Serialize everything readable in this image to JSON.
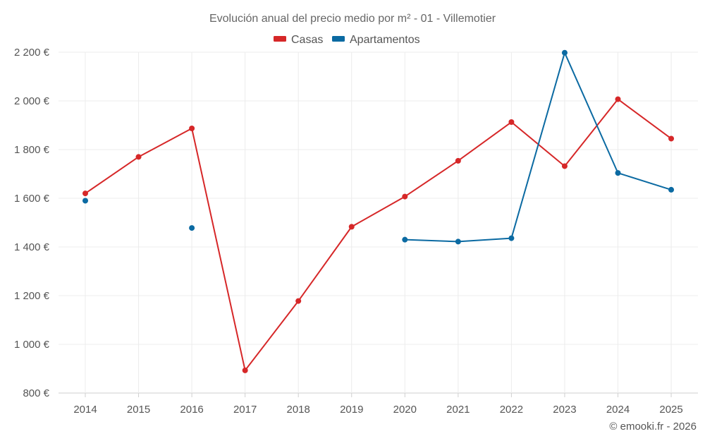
{
  "chart_data": {
    "type": "line",
    "title": "Evolución anual del precio medio por m² - 01 - Villemotier",
    "categories": [
      "2014",
      "2015",
      "2016",
      "2017",
      "2018",
      "2019",
      "2020",
      "2021",
      "2022",
      "2023",
      "2024",
      "2025"
    ],
    "series": [
      {
        "name": "Casas",
        "color": "#d62728",
        "values": [
          1620,
          1770,
          1887,
          893,
          1178,
          1483,
          1607,
          1754,
          1913,
          1732,
          2007,
          1845
        ]
      },
      {
        "name": "Apartamentos",
        "color": "#0b6aa2",
        "values": [
          1590,
          null,
          1478,
          null,
          null,
          null,
          1430,
          1422,
          1436,
          2198,
          1704,
          1635
        ]
      }
    ],
    "ylim": [
      800,
      2200
    ],
    "yticks": [
      800,
      1000,
      1200,
      1400,
      1600,
      1800,
      2000,
      2200
    ],
    "ytick_labels": [
      "800 €",
      "1 000 €",
      "1 200 €",
      "1 400 €",
      "1 600 €",
      "1 800 €",
      "2 000 €",
      "2 200 €"
    ],
    "grid": true,
    "legend_position": "top-center"
  },
  "credit": "© emooki.fr - 2026"
}
